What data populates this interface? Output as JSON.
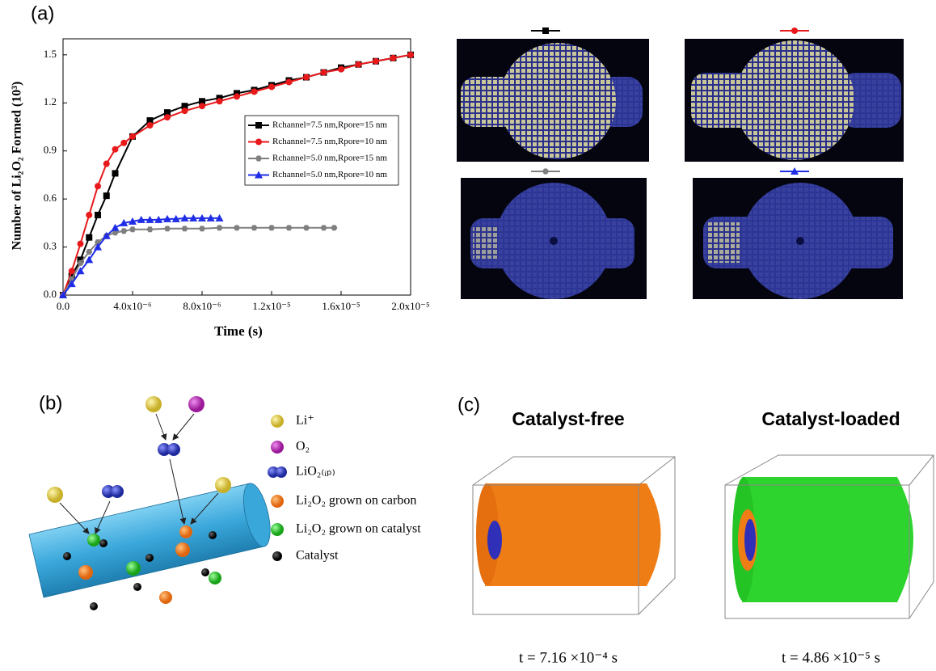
{
  "chart_data": {
    "type": "line",
    "panel_label": "(a)",
    "x_label": "Time (s)",
    "y_label": "Number of Li₂O₂ Formed (10³)",
    "xlim": [
      0,
      2e-05
    ],
    "ylim": [
      0,
      1.6
    ],
    "xticks": [
      {
        "value": 0,
        "label": "0.0"
      },
      {
        "value": 4e-06,
        "label": "4.0x10⁻⁶"
      },
      {
        "value": 8e-06,
        "label": "8.0x10⁻⁶"
      },
      {
        "value": 1.2e-05,
        "label": "1.2x10⁻⁵"
      },
      {
        "value": 1.6e-05,
        "label": "1.6x10⁻⁵"
      },
      {
        "value": 2e-05,
        "label": "2.0x10⁻⁵"
      }
    ],
    "yticks": [
      {
        "value": 0,
        "label": "0.0"
      },
      0.3,
      0.6,
      0.9,
      1.2,
      1.5
    ],
    "legend": "upper right",
    "series": [
      {
        "name": "Rchannel=7.5 nm,Rpore=15 nm",
        "color": "#000000",
        "marker": "square",
        "x": [
          0,
          5e-07,
          1e-06,
          1.5e-06,
          2e-06,
          2.5e-06,
          3e-06,
          4e-06,
          5e-06,
          6e-06,
          7e-06,
          8e-06,
          9e-06,
          1e-05,
          1.1e-05,
          1.2e-05,
          1.3e-05,
          1.4e-05,
          1.5e-05,
          1.6e-05,
          1.7e-05,
          1.8e-05,
          1.9e-05,
          2e-05
        ],
        "values": [
          0,
          0.12,
          0.22,
          0.36,
          0.5,
          0.62,
          0.76,
          0.99,
          1.09,
          1.14,
          1.18,
          1.21,
          1.23,
          1.26,
          1.28,
          1.31,
          1.34,
          1.36,
          1.39,
          1.42,
          1.44,
          1.46,
          1.48,
          1.5
        ]
      },
      {
        "name": "Rchannel=7.5 nm,Rpore=10 nm",
        "color": "#e8191b",
        "marker": "circle",
        "x": [
          0,
          5e-07,
          1e-06,
          1.5e-06,
          2e-06,
          2.5e-06,
          3e-06,
          3.5e-06,
          4e-06,
          5e-06,
          6e-06,
          7e-06,
          8e-06,
          9e-06,
          1e-05,
          1.1e-05,
          1.2e-05,
          1.3e-05,
          1.4e-05,
          1.5e-05,
          1.6e-05,
          1.7e-05,
          1.8e-05,
          1.9e-05,
          2e-05
        ],
        "values": [
          0,
          0.15,
          0.32,
          0.5,
          0.68,
          0.82,
          0.91,
          0.95,
          0.99,
          1.06,
          1.11,
          1.15,
          1.18,
          1.21,
          1.24,
          1.27,
          1.3,
          1.33,
          1.36,
          1.39,
          1.41,
          1.44,
          1.46,
          1.48,
          1.5
        ]
      },
      {
        "name": "Rchannel=5.0 nm,Rpore=15 nm",
        "color": "#7f7f7f",
        "marker": "hexagon",
        "x": [
          0,
          5e-07,
          1e-06,
          1.5e-06,
          2e-06,
          2.5e-06,
          3e-06,
          3.5e-06,
          4e-06,
          5e-06,
          6e-06,
          7e-06,
          8e-06,
          9e-06,
          1e-05,
          1.1e-05,
          1.2e-05,
          1.3e-05,
          1.4e-05,
          1.5e-05,
          1.56e-05
        ],
        "values": [
          0,
          0.1,
          0.2,
          0.27,
          0.33,
          0.37,
          0.39,
          0.4,
          0.41,
          0.41,
          0.415,
          0.415,
          0.415,
          0.42,
          0.42,
          0.42,
          0.42,
          0.42,
          0.42,
          0.42,
          0.42
        ]
      },
      {
        "name": "Rchannel=5.0 nm,Rpore=10 nm",
        "color": "#1f2de6",
        "marker": "triangle",
        "x": [
          0,
          5e-07,
          1e-06,
          1.5e-06,
          2e-06,
          2.5e-06,
          3e-06,
          3.5e-06,
          4e-06,
          4.5e-06,
          5e-06,
          5.5e-06,
          6e-06,
          6.5e-06,
          7e-06,
          7.5e-06,
          8e-06,
          8.5e-06,
          9e-06
        ],
        "values": [
          0,
          0.07,
          0.15,
          0.22,
          0.3,
          0.37,
          0.42,
          0.45,
          0.46,
          0.47,
          0.47,
          0.47,
          0.475,
          0.475,
          0.48,
          0.48,
          0.48,
          0.48,
          0.48
        ]
      }
    ]
  },
  "diagram": {
    "panel_label": "(b)",
    "legend": [
      "Li⁺",
      "O₂",
      "LiO₂₍ᵢₚ₎",
      "Li₂O₂ grown on carbon",
      "Li₂O₂ grown on catalyst",
      "Catalyst"
    ]
  },
  "simulation": {
    "panel_label": "(c)",
    "titles": [
      "Catalyst-free",
      "Catalyst-loaded"
    ],
    "captions": [
      "t = 7.16 ×10⁻⁴ s",
      "t = 4.86 ×10⁻⁵ s"
    ]
  }
}
